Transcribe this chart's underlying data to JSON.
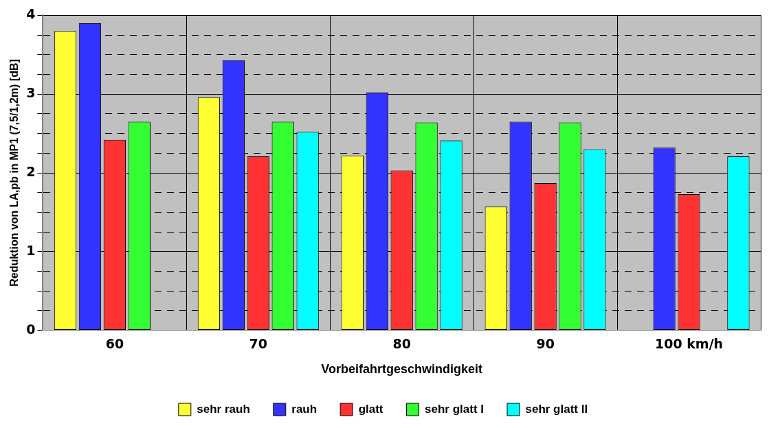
{
  "chart_data": {
    "type": "bar",
    "xlabel": "Vorbeifahrtgeschwindigkeit",
    "ylabel": "Reduktion von LA,pb in MP1 (7,5/1,2m) [dB]",
    "categories": [
      "60",
      "70",
      "80",
      "90",
      "100 km/h"
    ],
    "series": [
      {
        "name": "sehr rauh",
        "color": "#ffff33",
        "values": [
          3.8,
          2.96,
          2.22,
          1.57,
          null
        ]
      },
      {
        "name": "rauh",
        "color": "#3333ff",
        "values": [
          3.9,
          3.43,
          3.02,
          2.65,
          2.32
        ]
      },
      {
        "name": "glatt",
        "color": "#ff3333",
        "values": [
          2.42,
          2.21,
          2.03,
          1.87,
          1.73
        ]
      },
      {
        "name": "sehr glatt I",
        "color": "#33ff33",
        "values": [
          2.65,
          2.65,
          2.64,
          2.64,
          null
        ]
      },
      {
        "name": "sehr glatt II",
        "color": "#00ffff",
        "values": [
          null,
          2.52,
          2.41,
          2.3,
          2.21
        ]
      }
    ],
    "ylim": [
      0,
      4
    ],
    "yticks": [
      0,
      {
        "value": 0.25,
        "label": null
      },
      {
        "value": 0.5,
        "label": null
      },
      {
        "value": 0.75,
        "label": null
      },
      1,
      {
        "value": 1.25,
        "label": null
      },
      {
        "value": 1.5,
        "label": null
      },
      {
        "value": 1.75,
        "label": null
      },
      2,
      {
        "value": 2.25,
        "label": null
      },
      {
        "value": 2.5,
        "label": null
      },
      {
        "value": 2.75,
        "label": null
      },
      3,
      {
        "value": 3.25,
        "label": null
      },
      {
        "value": 3.5,
        "label": null
      },
      {
        "value": 3.75,
        "label": null
      },
      4
    ],
    "grid": true,
    "legend": "bottom"
  }
}
